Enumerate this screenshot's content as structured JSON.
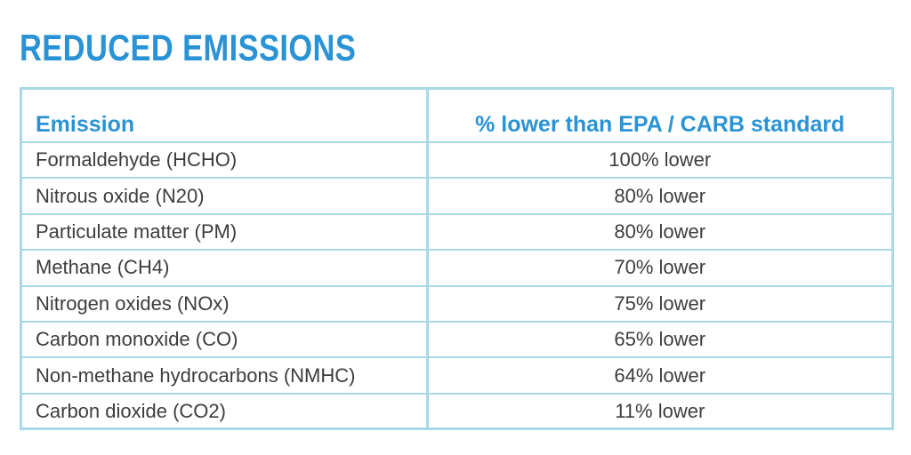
{
  "title": "REDUCED EMISSIONS",
  "table": {
    "headers": {
      "emission": "Emission",
      "percent": "% lower than EPA / CARB standard"
    },
    "rows": [
      {
        "emission": "Formaldehyde (HCHO)",
        "value": "100% lower"
      },
      {
        "emission": "Nitrous oxide (N20)",
        "value": "80% lower"
      },
      {
        "emission": "Particulate matter (PM)",
        "value": "80% lower"
      },
      {
        "emission": "Methane (CH4)",
        "value": "70% lower"
      },
      {
        "emission": "Nitrogen oxides (NOx)",
        "value": "75% lower"
      },
      {
        "emission": "Carbon monoxide (CO)",
        "value": "65% lower"
      },
      {
        "emission": "Non-methane hydrocarbons (NMHC)",
        "value": "64% lower"
      },
      {
        "emission": "Carbon dioxide (CO2)",
        "value": "11% lower"
      }
    ]
  },
  "colors": {
    "accent": "#2a93d5",
    "border": "#a9d8e6",
    "text": "#3d3d3d"
  }
}
